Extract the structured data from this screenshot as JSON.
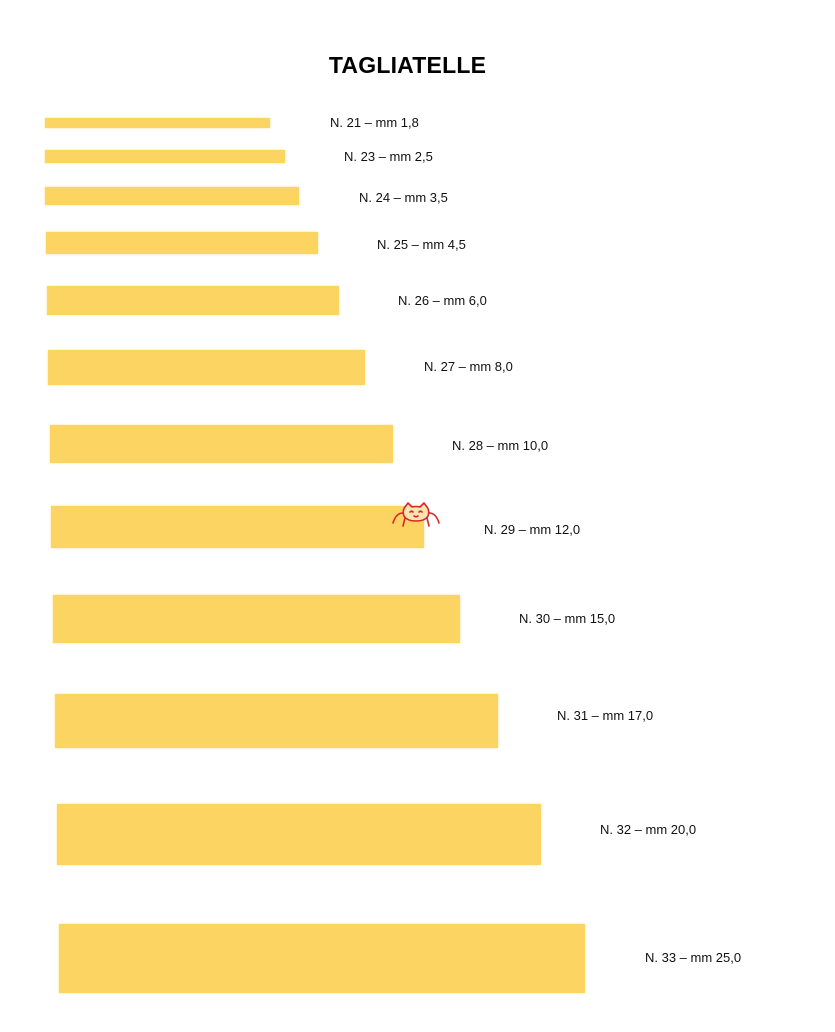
{
  "title": "TAGLIATELLE",
  "colors": {
    "strip": "#fcd462",
    "logo": "#d6262e"
  },
  "logo_icon": "cat-face-icon",
  "sizes": [
    {
      "number": 21,
      "width_mm": 1.8,
      "label": "N. 21 – mm 1,8"
    },
    {
      "number": 23,
      "width_mm": 2.5,
      "label": "N. 23 – mm 2,5"
    },
    {
      "number": 24,
      "width_mm": 3.5,
      "label": "N. 24 – mm 3,5"
    },
    {
      "number": 25,
      "width_mm": 4.5,
      "label": "N. 25 – mm 4,5"
    },
    {
      "number": 26,
      "width_mm": 6.0,
      "label": "N. 26 – mm 6,0"
    },
    {
      "number": 27,
      "width_mm": 8.0,
      "label": "N. 27 – mm 8,0"
    },
    {
      "number": 28,
      "width_mm": 10.0,
      "label": "N. 28 – mm 10,0"
    },
    {
      "number": 29,
      "width_mm": 12.0,
      "label": "N. 29 – mm 12,0"
    },
    {
      "number": 30,
      "width_mm": 15.0,
      "label": "N. 30 – mm 15,0"
    },
    {
      "number": 31,
      "width_mm": 17.0,
      "label": "N. 31 – mm 17,0"
    },
    {
      "number": 32,
      "width_mm": 20.0,
      "label": "N. 32 – mm 20,0"
    },
    {
      "number": 33,
      "width_mm": 25.0,
      "label": "N. 33 – mm 25,0"
    }
  ]
}
